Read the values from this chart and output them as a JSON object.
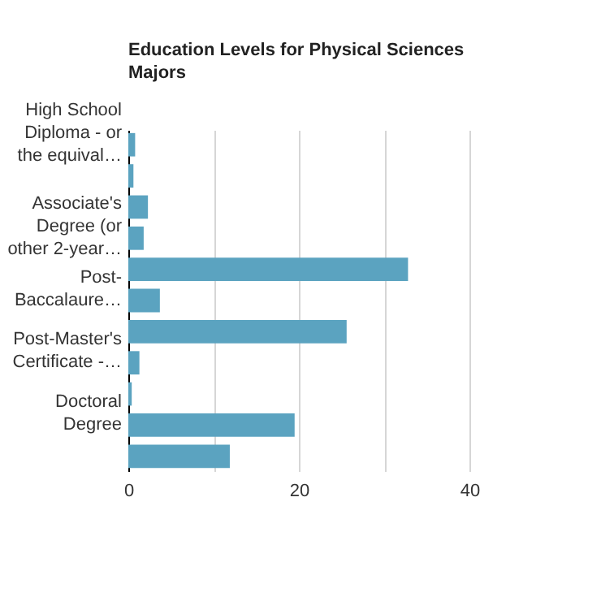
{
  "chart_data": {
    "type": "bar",
    "orientation": "horizontal",
    "title": "Education Levels for Physical Sciences Majors",
    "categories": [
      "High School Diploma - or the equival…",
      null,
      null,
      "Associate's Degree (or other 2-year…",
      null,
      "Post-Baccalaure…",
      null,
      "Post-Master's Certificate -…",
      null,
      "Doctoral Degree",
      null
    ],
    "values": [
      0.8,
      0.6,
      2.3,
      1.8,
      32.8,
      3.7,
      25.6,
      1.3,
      0.4,
      19.5,
      11.9
    ],
    "color": "#5ba3c0",
    "xlim": [
      0,
      40
    ],
    "xticks": [
      0,
      {
        "value": 10,
        "label": null
      },
      20,
      {
        "value": 30,
        "label": null
      },
      40
    ],
    "grid": "x"
  }
}
